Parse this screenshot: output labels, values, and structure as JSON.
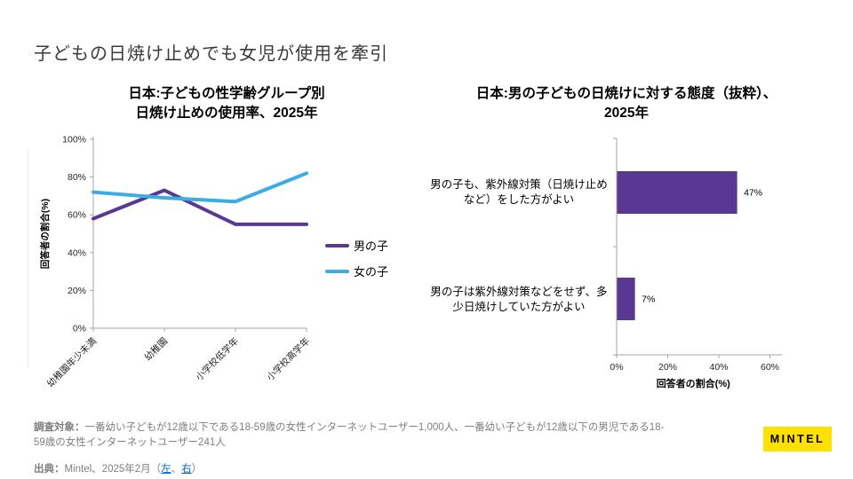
{
  "slide_title": "子どもの日焼け止めでも女児が使用を牽引",
  "chart_data": [
    {
      "type": "line",
      "title": "日本:子どもの性学齢グループ別 日焼け止めの使用率、2025年",
      "title_lines": [
        "日本:子どもの性学齢グループ別",
        "日焼け止めの使用率、2025年"
      ],
      "categories": [
        "幼稚園年少未満",
        "幼稚園",
        "小学校低学年",
        "小学校高学年"
      ],
      "series": [
        {
          "name": "男の子",
          "color": "#5B3794",
          "values": [
            58,
            73,
            55,
            55
          ]
        },
        {
          "name": "女の子",
          "color": "#3BADE2",
          "values": [
            72,
            69,
            67,
            82
          ]
        }
      ],
      "ylabel": "回答者の割合(%)",
      "ylim": [
        0,
        100
      ],
      "yticks": [
        0,
        20,
        40,
        60,
        80,
        100
      ],
      "ytick_labels": [
        "0%",
        "20%",
        "40%",
        "60%",
        "80%",
        "100%"
      ],
      "grid": false,
      "legend_position": "right"
    },
    {
      "type": "bar",
      "orientation": "horizontal",
      "title": "日本:男の子どもの日焼けに対する態度（抜粋）、2025年",
      "title_lines": [
        "日本:男の子どもの日焼けに対する態度（抜粋）、",
        "2025年"
      ],
      "categories": [
        "男の子も、紫外線対策（日焼け止めなど）をした方がよい",
        "男の子は紫外線対策などをせず、多少日焼けしていた方がよい"
      ],
      "values": [
        47,
        7
      ],
      "data_labels": [
        "47%",
        "7%"
      ],
      "xlabel": "回答者の割合(%)",
      "xlim": [
        0,
        60
      ],
      "xticks": [
        0,
        20,
        40,
        60
      ],
      "xtick_labels": [
        "0%",
        "20%",
        "40%",
        "60%"
      ],
      "bar_color": "#5B3794",
      "grid": false
    }
  ],
  "footnote": {
    "label": "調査対象：",
    "text": "一番幼い子どもが12歳以下である18-59歳の女性インターネットユーザー1,000人、一番幼い子どもが12歳以下の男児である18-59歳の女性インターネットユーザー241人"
  },
  "source": {
    "label": "出典：",
    "prefix": "Mintel、2025年2月（",
    "link_left": "左",
    "separator": "、",
    "link_right": "右",
    "suffix": "）"
  },
  "logo_text": "MINTEL",
  "colors": {
    "boys_purple": "#5B3794",
    "girls_blue": "#3BADE2",
    "axis_gray": "#A6A6A6",
    "text_dark": "#262626",
    "muted_gray": "#7F7F7F",
    "link_blue": "#0563C1",
    "logo_yellow": "#FFE000"
  }
}
